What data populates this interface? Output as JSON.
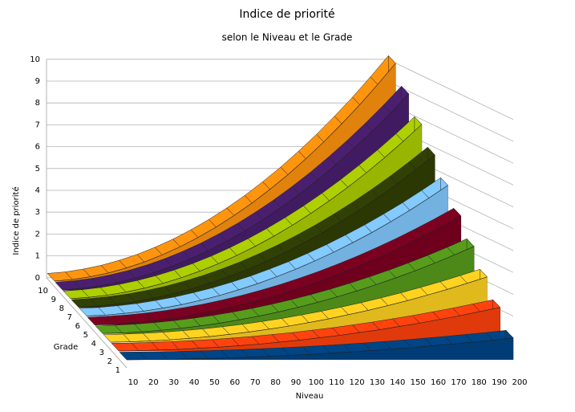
{
  "chart_data": {
    "type": "area3d",
    "title": "Indice de priorité",
    "subtitle": "selon le Niveau et le Grade",
    "y_label": "Indice de priorité",
    "x_label": "Niveau",
    "depth_label": "Grade",
    "categories": [
      "10",
      "20",
      "30",
      "40",
      "50",
      "60",
      "70",
      "80",
      "90",
      "100",
      "110",
      "120",
      "130",
      "140",
      "150",
      "160",
      "170",
      "180",
      "190",
      "200"
    ],
    "ylim": [
      0,
      10
    ],
    "yticks": [
      0,
      1,
      2,
      3,
      4,
      5,
      6,
      7,
      8,
      9,
      10
    ],
    "grid": true,
    "series": [
      {
        "name": "1",
        "color": "#004586",
        "values": [
          0,
          0.01,
          0.02,
          0.04,
          0.06,
          0.09,
          0.12,
          0.16,
          0.2,
          0.25,
          0.3,
          0.36,
          0.42,
          0.49,
          0.56,
          0.64,
          0.72,
          0.81,
          0.9,
          1
        ]
      },
      {
        "name": "2",
        "color": "#ff420e",
        "values": [
          0.01,
          0.02,
          0.05,
          0.08,
          0.13,
          0.18,
          0.25,
          0.32,
          0.41,
          0.5,
          0.61,
          0.72,
          0.85,
          0.98,
          1.13,
          1.28,
          1.45,
          1.62,
          1.81,
          2
        ]
      },
      {
        "name": "3",
        "color": "#ffd320",
        "values": [
          0.01,
          0.03,
          0.07,
          0.12,
          0.19,
          0.27,
          0.37,
          0.48,
          0.61,
          0.75,
          0.91,
          1.08,
          1.27,
          1.47,
          1.69,
          1.92,
          2.17,
          2.43,
          2.71,
          3
        ]
      },
      {
        "name": "4",
        "color": "#579d1c",
        "values": [
          0.01,
          0.04,
          0.09,
          0.16,
          0.25,
          0.36,
          0.49,
          0.64,
          0.81,
          1,
          1.21,
          1.44,
          1.69,
          1.96,
          2.25,
          2.56,
          2.89,
          3.24,
          3.61,
          4
        ]
      },
      {
        "name": "5",
        "color": "#7e0021",
        "values": [
          0.01,
          0.05,
          0.11,
          0.2,
          0.31,
          0.45,
          0.61,
          0.8,
          1.01,
          1.25,
          1.51,
          1.8,
          2.11,
          2.45,
          2.81,
          3.2,
          3.61,
          4.05,
          4.51,
          5
        ]
      },
      {
        "name": "6",
        "color": "#83caff",
        "values": [
          0.02,
          0.06,
          0.14,
          0.24,
          0.38,
          0.54,
          0.74,
          0.96,
          1.22,
          1.5,
          1.82,
          2.16,
          2.54,
          2.94,
          3.38,
          3.84,
          4.34,
          4.86,
          5.42,
          6
        ]
      },
      {
        "name": "7",
        "color": "#314004",
        "values": [
          0.02,
          0.07,
          0.16,
          0.28,
          0.44,
          0.63,
          0.86,
          1.12,
          1.42,
          1.75,
          2.12,
          2.52,
          2.96,
          3.43,
          3.94,
          4.48,
          5.06,
          5.67,
          6.32,
          7
        ]
      },
      {
        "name": "8",
        "color": "#aecf00",
        "values": [
          0.02,
          0.08,
          0.18,
          0.32,
          0.5,
          0.72,
          0.98,
          1.28,
          1.62,
          2,
          2.42,
          2.88,
          3.38,
          3.92,
          4.5,
          5.12,
          5.78,
          6.48,
          7.22,
          8
        ]
      },
      {
        "name": "9",
        "color": "#4b1f6f",
        "values": [
          0.02,
          0.09,
          0.2,
          0.36,
          0.56,
          0.81,
          1.1,
          1.44,
          1.82,
          2.25,
          2.72,
          3.24,
          3.8,
          4.41,
          5.06,
          5.76,
          6.5,
          7.29,
          8.12,
          9
        ]
      },
      {
        "name": "10",
        "color": "#ff950e",
        "values": [
          0.03,
          0.1,
          0.23,
          0.4,
          0.63,
          0.9,
          1.23,
          1.6,
          2.03,
          2.5,
          3.03,
          3.6,
          4.23,
          4.9,
          5.63,
          6.4,
          7.23,
          8.1,
          9.03,
          10
        ]
      }
    ]
  }
}
